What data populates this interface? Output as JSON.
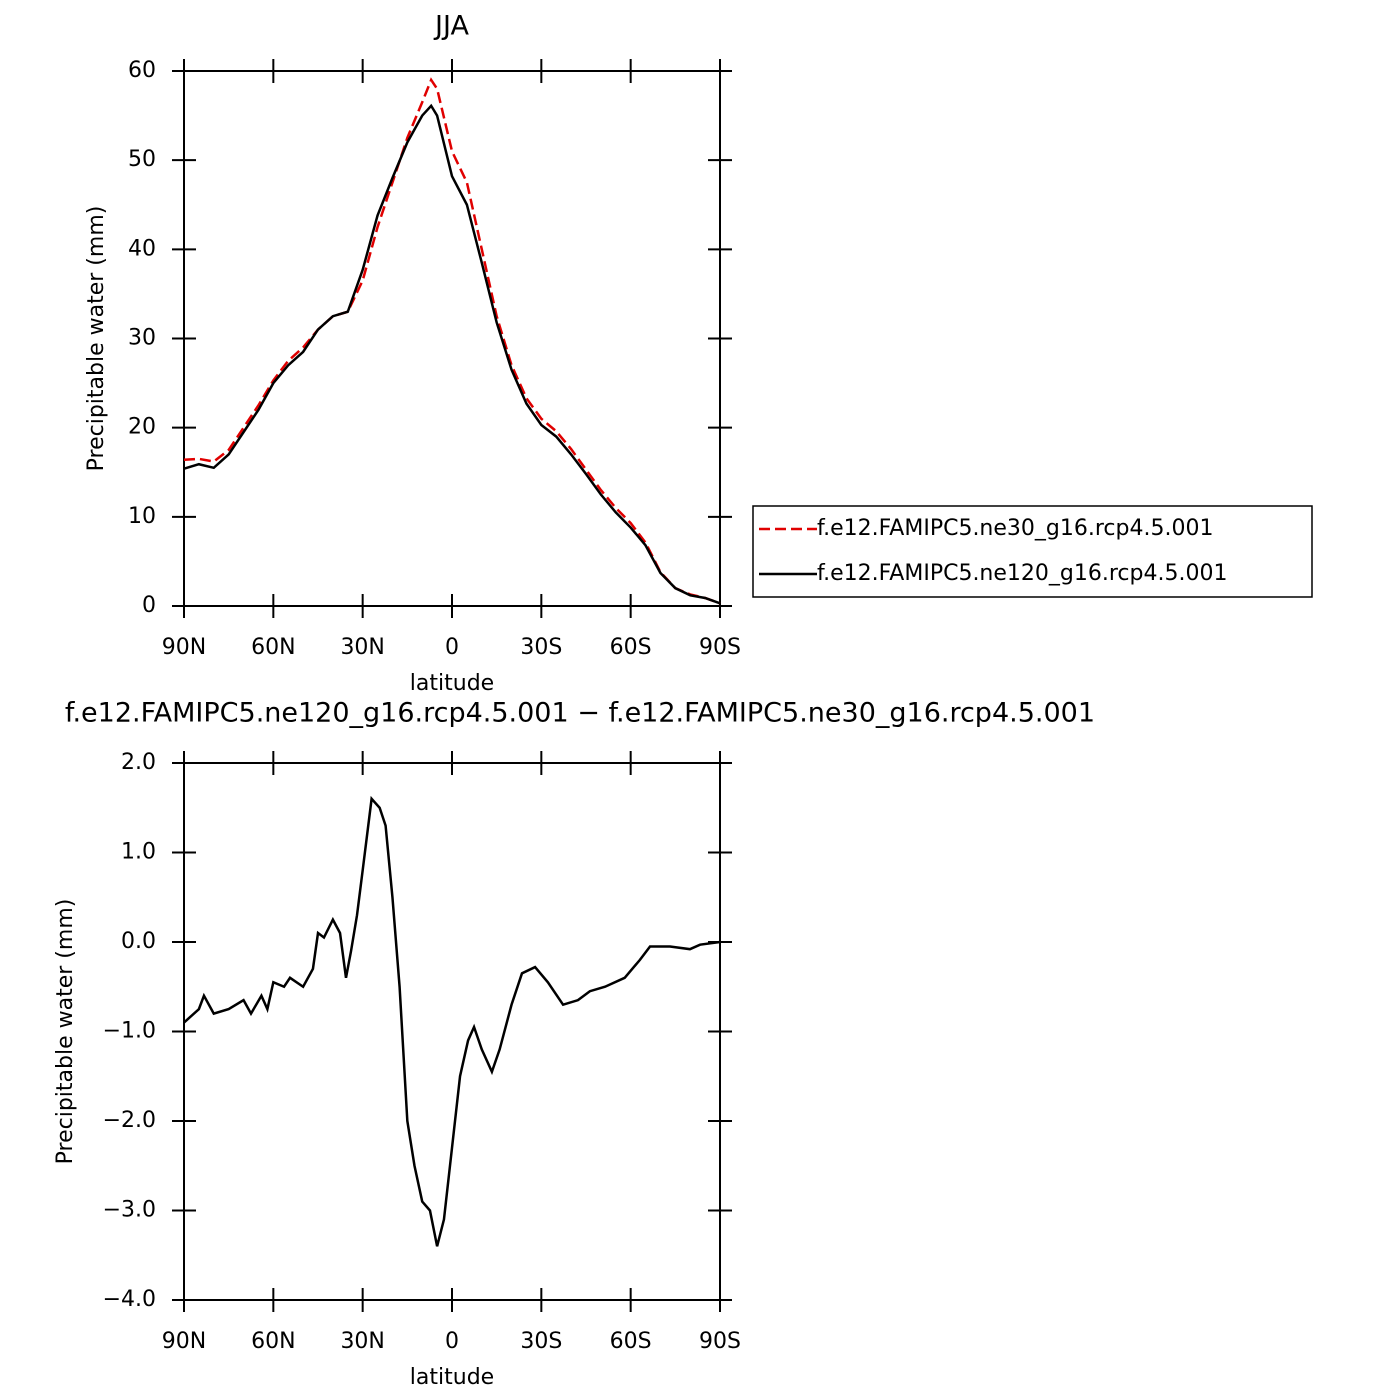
{
  "chart_data": [
    {
      "type": "line",
      "title": "JJA",
      "x_label": "latitude",
      "y_label": "Precipitable water (mm)",
      "x": [
        90,
        85,
        80,
        75,
        70,
        65,
        60,
        55,
        50,
        45,
        40,
        35,
        30,
        25,
        20,
        15,
        10,
        7,
        5,
        0,
        -5,
        -10,
        -15,
        -20,
        -25,
        -30,
        -35,
        -40,
        -45,
        -50,
        -55,
        -60,
        -65,
        -70,
        -75,
        -80,
        -85,
        -90
      ],
      "series": [
        {
          "name": "f.e12.FAMIPC5.ne30_g16.rcp4.5.001",
          "color": "#e00000",
          "dashed": true,
          "values": [
            16.4,
            16.5,
            16.2,
            17.5,
            20,
            22.5,
            25.3,
            27.5,
            29,
            31,
            32.5,
            33,
            36.5,
            42.5,
            47.5,
            52.5,
            56.5,
            59,
            58,
            51,
            47.5,
            40,
            32.5,
            27,
            23.3,
            21,
            19.6,
            17.6,
            15.3,
            13,
            11,
            9.3,
            7.1,
            3.8,
            2,
            1.3,
            0.9,
            0.3
          ]
        },
        {
          "name": "f.e12.FAMIPC5.ne120_g16.rcp4.5.001",
          "color": "#000000",
          "dashed": false,
          "values": [
            15.4,
            15.9,
            15.5,
            17,
            19.5,
            22,
            25,
            27,
            28.5,
            31,
            32.5,
            33,
            37.7,
            43.8,
            48,
            52,
            55,
            56.1,
            55,
            48.2,
            45,
            38.5,
            31.8,
            26.5,
            22.7,
            20.3,
            19,
            17,
            14.8,
            12.5,
            10.5,
            8.8,
            6.8,
            3.7,
            2,
            1.2,
            0.9,
            0.3
          ]
        }
      ],
      "xlim": [
        90,
        -90
      ],
      "ylim": [
        0,
        60
      ],
      "xticks": [
        {
          "value": 90,
          "label": "90N"
        },
        {
          "value": 60,
          "label": "60N"
        },
        {
          "value": 30,
          "label": "30N"
        },
        0,
        {
          "value": -30,
          "label": "30S"
        },
        {
          "value": -60,
          "label": "60S"
        },
        {
          "value": -90,
          "label": "90S"
        }
      ],
      "yticks": [
        0,
        10,
        20,
        30,
        40,
        50,
        60
      ],
      "legend": "right"
    },
    {
      "type": "line",
      "title": "f.e12.FAMIPC5.ne120_g16.rcp4.5.001 − f.e12.FAMIPC5.ne30_g16.rcp4.5.001",
      "x_label": "latitude",
      "y_label": "Precipitable water (mm)",
      "x": [
        90,
        85,
        83.3,
        80,
        75,
        70,
        67.5,
        64,
        62,
        60,
        56.4,
        54.4,
        50,
        46.7,
        45,
        43,
        40,
        37.6,
        35.6,
        33.9,
        31.9,
        30,
        27,
        24.3,
        22.3,
        20,
        17.6,
        15,
        12.6,
        10,
        7.4,
        5,
        2.7,
        0,
        -2.7,
        -5.4,
        -7.4,
        -10,
        -13.4,
        -16,
        -20,
        -23.5,
        -27.9,
        -32.2,
        -37.3,
        -42.3,
        -46.3,
        -51.4,
        -58,
        -63.1,
        -66.5,
        -73.2,
        -79.9,
        -83.3,
        -90
      ],
      "color": "#000000",
      "values": [
        -0.9,
        -0.75,
        -0.6,
        -0.8,
        -0.75,
        -0.65,
        -0.8,
        -0.6,
        -0.75,
        -0.45,
        -0.5,
        -0.4,
        -0.5,
        -0.3,
        0.1,
        0.05,
        0.25,
        0.1,
        -0.4,
        -0.1,
        0.3,
        0.8,
        1.6,
        1.5,
        1.3,
        0.5,
        -0.5,
        -2.0,
        -2.5,
        -2.9,
        -3.0,
        -3.4,
        -3.1,
        -2.3,
        -1.5,
        -1.1,
        -0.95,
        -1.2,
        -1.45,
        -1.2,
        -0.7,
        -0.35,
        -0.28,
        -0.45,
        -0.7,
        -0.65,
        -0.55,
        -0.5,
        -0.4,
        -0.2,
        -0.05,
        -0.05,
        -0.08,
        -0.03,
        0.0
      ],
      "xlim": [
        90,
        -90
      ],
      "ylim": [
        -4,
        2
      ],
      "xticks": [
        {
          "value": 90,
          "label": "90N"
        },
        {
          "value": 60,
          "label": "60N"
        },
        {
          "value": 30,
          "label": "30N"
        },
        0,
        {
          "value": -30,
          "label": "30S"
        },
        {
          "value": -60,
          "label": "60S"
        },
        {
          "value": -90,
          "label": "90S"
        }
      ],
      "yticks": [
        {
          "value": -4,
          "label": "−4.0"
        },
        {
          "value": -3,
          "label": "−3.0"
        },
        {
          "value": -2,
          "label": "−2.0"
        },
        {
          "value": -1,
          "label": "−1.0"
        },
        {
          "value": 0,
          "label": "0.0"
        },
        {
          "value": 1,
          "label": "1.0"
        },
        {
          "value": 2,
          "label": "2.0"
        }
      ]
    }
  ]
}
